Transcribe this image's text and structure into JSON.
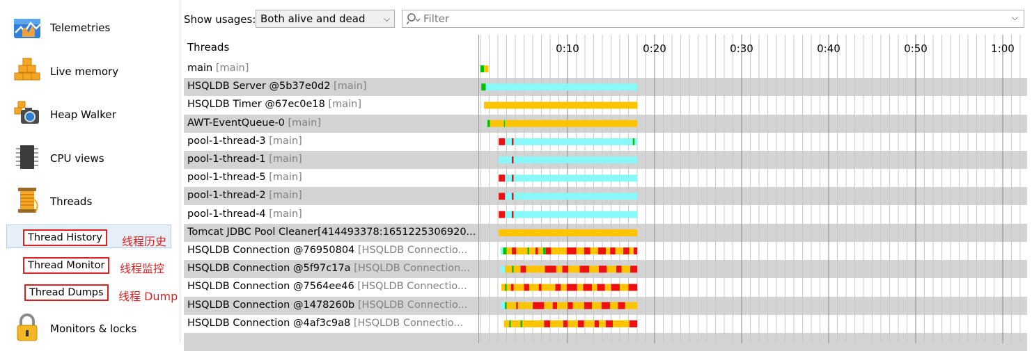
{
  "sidebar": {
    "items": [
      {
        "label": "Telemetries",
        "icon": "telemetries-icon"
      },
      {
        "label": "Live memory",
        "icon": "live-memory-icon"
      },
      {
        "label": "Heap Walker",
        "icon": "heap-walker-icon"
      },
      {
        "label": "CPU views",
        "icon": "cpu-views-icon"
      },
      {
        "label": "Threads",
        "icon": "threads-icon"
      },
      {
        "label": "Monitors & locks",
        "icon": "lock-icon"
      }
    ],
    "subitems": [
      {
        "label": "Thread History",
        "note": "线程历史",
        "selected": true
      },
      {
        "label": "Thread Monitor",
        "note": "线程监控",
        "selected": false
      },
      {
        "label": "Thread Dumps",
        "note": "线程 Dump",
        "selected": false
      }
    ]
  },
  "toolbar": {
    "show_label": "Show usages:",
    "usage_value": "Both alive and dead",
    "filter_placeholder": "Filter"
  },
  "grid": {
    "header": "Threads",
    "ticks": [
      "0:10",
      "0:20",
      "0:30",
      "0:40",
      "0:50",
      "1:00"
    ],
    "colors": {
      "runnable": "#00c000",
      "waiting": "#ffc400",
      "blocked": "#ee1010",
      "net_io": "#88f8f8"
    },
    "threads": [
      {
        "name": "main",
        "group": "[main]",
        "segments": [
          {
            "s": 0.0,
            "e": 0.4,
            "c": "runnable"
          },
          {
            "s": 0.4,
            "e": 0.9,
            "c": "waiting"
          }
        ]
      },
      {
        "name": "HSQLDB Server @5b37e0d2",
        "group": "[main]",
        "segments": [
          {
            "s": 0.1,
            "e": 0.6,
            "c": "runnable"
          },
          {
            "s": 0.6,
            "e": 18.0,
            "c": "net_io"
          }
        ]
      },
      {
        "name": "HSQLDB Timer @67ec0e18",
        "group": "[main]",
        "segments": [
          {
            "s": 0.4,
            "e": 18.0,
            "c": "waiting"
          }
        ]
      },
      {
        "name": "AWT-EventQueue-0",
        "group": "[main]",
        "segments": [
          {
            "s": 0.8,
            "e": 1.1,
            "c": "runnable"
          },
          {
            "s": 1.1,
            "e": 2.7,
            "c": "waiting"
          },
          {
            "s": 2.7,
            "e": 2.8,
            "c": "runnable"
          },
          {
            "s": 2.8,
            "e": 18.0,
            "c": "waiting"
          }
        ]
      },
      {
        "name": "pool-1-thread-3",
        "group": "[main]",
        "segments": [
          {
            "s": 2.1,
            "e": 2.8,
            "c": "blocked"
          },
          {
            "s": 2.8,
            "e": 3.6,
            "c": "net_io"
          },
          {
            "s": 3.6,
            "e": 3.8,
            "c": "blocked"
          },
          {
            "s": 3.8,
            "e": 17.5,
            "c": "net_io"
          },
          {
            "s": 17.5,
            "e": 17.7,
            "c": "runnable"
          },
          {
            "s": 17.7,
            "e": 18.0,
            "c": "net_io"
          }
        ]
      },
      {
        "name": "pool-1-thread-1",
        "group": "[main]",
        "segments": [
          {
            "s": 2.1,
            "e": 3.6,
            "c": "net_io"
          },
          {
            "s": 3.6,
            "e": 3.8,
            "c": "blocked"
          },
          {
            "s": 3.8,
            "e": 18.0,
            "c": "net_io"
          }
        ]
      },
      {
        "name": "pool-1-thread-5",
        "group": "[main]",
        "segments": [
          {
            "s": 2.1,
            "e": 2.8,
            "c": "blocked"
          },
          {
            "s": 2.8,
            "e": 3.6,
            "c": "net_io"
          },
          {
            "s": 3.6,
            "e": 3.8,
            "c": "blocked"
          },
          {
            "s": 3.8,
            "e": 18.0,
            "c": "net_io"
          }
        ]
      },
      {
        "name": "pool-1-thread-2",
        "group": "[main]",
        "segments": [
          {
            "s": 2.1,
            "e": 2.8,
            "c": "blocked"
          },
          {
            "s": 2.8,
            "e": 3.6,
            "c": "net_io"
          },
          {
            "s": 3.6,
            "e": 3.8,
            "c": "blocked"
          },
          {
            "s": 3.8,
            "e": 18.0,
            "c": "net_io"
          }
        ]
      },
      {
        "name": "pool-1-thread-4",
        "group": "[main]",
        "segments": [
          {
            "s": 2.1,
            "e": 2.8,
            "c": "blocked"
          },
          {
            "s": 2.8,
            "e": 3.6,
            "c": "net_io"
          },
          {
            "s": 3.6,
            "e": 3.8,
            "c": "blocked"
          },
          {
            "s": 3.8,
            "e": 18.0,
            "c": "net_io"
          }
        ]
      },
      {
        "name": "Tomcat JDBC Pool Cleaner[414493378:1651225306920...",
        "group": "",
        "segments": [
          {
            "s": 2.1,
            "e": 18.0,
            "c": "waiting"
          }
        ]
      },
      {
        "name": "HSQLDB Connection @76950804",
        "group": "[HSQLDB Connectio...",
        "segments": [
          {
            "s": 2.3,
            "e": 2.6,
            "c": "net_io"
          },
          {
            "s": 2.6,
            "e": 3.0,
            "c": "runnable"
          },
          {
            "s": 3.0,
            "e": 3.6,
            "c": "waiting"
          },
          {
            "s": 3.6,
            "e": 4.1,
            "c": "blocked"
          },
          {
            "s": 4.1,
            "e": 5.4,
            "c": "waiting"
          },
          {
            "s": 5.4,
            "e": 5.6,
            "c": "runnable"
          },
          {
            "s": 5.6,
            "e": 6.3,
            "c": "waiting"
          },
          {
            "s": 6.3,
            "e": 6.6,
            "c": "blocked"
          },
          {
            "s": 6.6,
            "e": 7.2,
            "c": "waiting"
          },
          {
            "s": 7.2,
            "e": 7.5,
            "c": "runnable"
          },
          {
            "s": 7.5,
            "e": 8.1,
            "c": "blocked"
          },
          {
            "s": 8.1,
            "e": 9.9,
            "c": "waiting"
          },
          {
            "s": 9.9,
            "e": 11.0,
            "c": "blocked"
          },
          {
            "s": 11.0,
            "e": 11.9,
            "c": "waiting"
          },
          {
            "s": 11.9,
            "e": 12.6,
            "c": "blocked"
          },
          {
            "s": 12.6,
            "e": 13.5,
            "c": "waiting"
          },
          {
            "s": 13.5,
            "e": 14.4,
            "c": "blocked"
          },
          {
            "s": 14.4,
            "e": 14.9,
            "c": "waiting"
          },
          {
            "s": 14.9,
            "e": 15.5,
            "c": "blocked"
          },
          {
            "s": 15.5,
            "e": 16.4,
            "c": "waiting"
          },
          {
            "s": 16.4,
            "e": 17.1,
            "c": "blocked"
          },
          {
            "s": 17.1,
            "e": 17.6,
            "c": "waiting"
          },
          {
            "s": 17.6,
            "e": 18.0,
            "c": "blocked"
          }
        ]
      },
      {
        "name": "HSQLDB Connection @5f97c17a",
        "group": "[HSQLDB Connection...",
        "segments": [
          {
            "s": 2.3,
            "e": 2.8,
            "c": "net_io"
          },
          {
            "s": 2.8,
            "e": 3.6,
            "c": "waiting"
          },
          {
            "s": 3.6,
            "e": 3.8,
            "c": "runnable"
          },
          {
            "s": 3.8,
            "e": 4.6,
            "c": "waiting"
          },
          {
            "s": 4.6,
            "e": 5.2,
            "c": "blocked"
          },
          {
            "s": 5.2,
            "e": 7.4,
            "c": "waiting"
          },
          {
            "s": 7.4,
            "e": 8.7,
            "c": "blocked"
          },
          {
            "s": 8.7,
            "e": 9.4,
            "c": "waiting"
          },
          {
            "s": 9.4,
            "e": 10.1,
            "c": "blocked"
          },
          {
            "s": 10.1,
            "e": 11.4,
            "c": "waiting"
          },
          {
            "s": 11.4,
            "e": 12.5,
            "c": "blocked"
          },
          {
            "s": 12.5,
            "e": 13.6,
            "c": "waiting"
          },
          {
            "s": 13.6,
            "e": 14.5,
            "c": "blocked"
          },
          {
            "s": 14.5,
            "e": 15.6,
            "c": "waiting"
          },
          {
            "s": 15.6,
            "e": 16.2,
            "c": "blocked"
          },
          {
            "s": 16.2,
            "e": 17.2,
            "c": "waiting"
          },
          {
            "s": 17.2,
            "e": 18.0,
            "c": "blocked"
          }
        ]
      },
      {
        "name": "HSQLDB Connection @7564ee46",
        "group": "[HSQLDB Connectio...",
        "segments": [
          {
            "s": 2.4,
            "e": 2.8,
            "c": "waiting"
          },
          {
            "s": 2.8,
            "e": 3.0,
            "c": "runnable"
          },
          {
            "s": 3.0,
            "e": 3.5,
            "c": "waiting"
          },
          {
            "s": 3.5,
            "e": 3.8,
            "c": "blocked"
          },
          {
            "s": 3.8,
            "e": 5.0,
            "c": "waiting"
          },
          {
            "s": 5.0,
            "e": 5.6,
            "c": "blocked"
          },
          {
            "s": 5.6,
            "e": 6.7,
            "c": "waiting"
          },
          {
            "s": 6.7,
            "e": 7.0,
            "c": "blocked"
          },
          {
            "s": 7.0,
            "e": 8.6,
            "c": "waiting"
          },
          {
            "s": 8.6,
            "e": 9.2,
            "c": "blocked"
          },
          {
            "s": 9.2,
            "e": 9.9,
            "c": "waiting"
          },
          {
            "s": 9.9,
            "e": 11.1,
            "c": "blocked"
          },
          {
            "s": 11.1,
            "e": 11.8,
            "c": "waiting"
          },
          {
            "s": 11.8,
            "e": 12.8,
            "c": "blocked"
          },
          {
            "s": 12.8,
            "e": 13.4,
            "c": "waiting"
          },
          {
            "s": 13.4,
            "e": 14.3,
            "c": "blocked"
          },
          {
            "s": 14.3,
            "e": 15.0,
            "c": "waiting"
          },
          {
            "s": 15.0,
            "e": 16.0,
            "c": "blocked"
          },
          {
            "s": 16.0,
            "e": 17.0,
            "c": "waiting"
          },
          {
            "s": 17.0,
            "e": 18.0,
            "c": "blocked"
          }
        ]
      },
      {
        "name": "HSQLDB Connection @1478260b",
        "group": "[HSQLDB Connectio...",
        "segments": [
          {
            "s": 2.4,
            "e": 2.8,
            "c": "net_io"
          },
          {
            "s": 2.8,
            "e": 3.0,
            "c": "runnable"
          },
          {
            "s": 3.0,
            "e": 4.1,
            "c": "waiting"
          },
          {
            "s": 4.1,
            "e": 4.3,
            "c": "blocked"
          },
          {
            "s": 4.3,
            "e": 6.0,
            "c": "waiting"
          },
          {
            "s": 6.0,
            "e": 7.3,
            "c": "blocked"
          },
          {
            "s": 7.3,
            "e": 8.3,
            "c": "waiting"
          },
          {
            "s": 8.3,
            "e": 8.8,
            "c": "blocked"
          },
          {
            "s": 8.8,
            "e": 10.0,
            "c": "waiting"
          },
          {
            "s": 10.0,
            "e": 10.6,
            "c": "blocked"
          },
          {
            "s": 10.6,
            "e": 11.9,
            "c": "waiting"
          },
          {
            "s": 11.9,
            "e": 12.8,
            "c": "blocked"
          },
          {
            "s": 12.8,
            "e": 13.9,
            "c": "waiting"
          },
          {
            "s": 13.9,
            "e": 14.9,
            "c": "blocked"
          },
          {
            "s": 14.9,
            "e": 15.8,
            "c": "waiting"
          },
          {
            "s": 15.8,
            "e": 16.6,
            "c": "blocked"
          },
          {
            "s": 16.6,
            "e": 18.0,
            "c": "waiting"
          }
        ]
      },
      {
        "name": "HSQLDB Connection @4af3c9a8",
        "group": "[HSQLDB Connectio...",
        "segments": [
          {
            "s": 2.7,
            "e": 3.3,
            "c": "waiting"
          },
          {
            "s": 3.3,
            "e": 3.5,
            "c": "runnable"
          },
          {
            "s": 3.5,
            "e": 4.6,
            "c": "waiting"
          },
          {
            "s": 4.6,
            "e": 4.8,
            "c": "runnable"
          },
          {
            "s": 4.8,
            "e": 7.3,
            "c": "waiting"
          },
          {
            "s": 7.3,
            "e": 8.0,
            "c": "blocked"
          },
          {
            "s": 8.0,
            "e": 9.5,
            "c": "waiting"
          },
          {
            "s": 9.5,
            "e": 10.0,
            "c": "blocked"
          },
          {
            "s": 10.0,
            "e": 11.2,
            "c": "waiting"
          },
          {
            "s": 11.2,
            "e": 11.9,
            "c": "blocked"
          },
          {
            "s": 11.9,
            "e": 13.1,
            "c": "waiting"
          },
          {
            "s": 13.1,
            "e": 13.6,
            "c": "blocked"
          },
          {
            "s": 13.6,
            "e": 14.4,
            "c": "waiting"
          },
          {
            "s": 14.4,
            "e": 15.2,
            "c": "blocked"
          },
          {
            "s": 15.2,
            "e": 17.1,
            "c": "waiting"
          },
          {
            "s": 17.1,
            "e": 18.0,
            "c": "blocked"
          }
        ]
      }
    ]
  }
}
